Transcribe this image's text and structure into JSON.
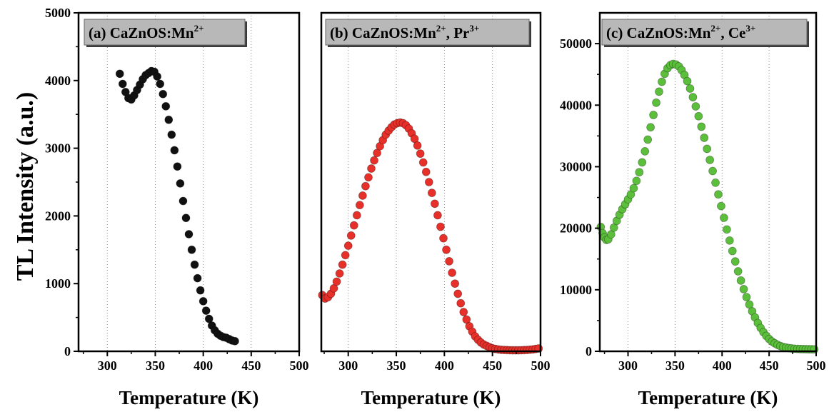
{
  "figure": {
    "ylabel": "TL Intensity (a.u.)",
    "xlabel": "Temperature (K)"
  },
  "chart_data": [
    {
      "type": "scatter",
      "panel_label": {
        "text": "(a) CaZnOS:Mn",
        "sup": "2+"
      },
      "xlabel": "Temperature (K)",
      "ylabel": "TL Intensity (a.u.)",
      "xlim": [
        270,
        500
      ],
      "ylim": [
        0,
        5000
      ],
      "xticks": [
        300,
        350,
        400,
        450,
        500
      ],
      "yticks": [
        0,
        1000,
        2000,
        3000,
        4000,
        5000
      ],
      "grid": "vertical dotted",
      "marker_color": "#111111",
      "series": [
        {
          "x": [
            313,
            316,
            319,
            322,
            325,
            328,
            331,
            334,
            337,
            340,
            343,
            346,
            349,
            352,
            355,
            358,
            361,
            364,
            367,
            370,
            373,
            376,
            379,
            382,
            385,
            388,
            391,
            394,
            397,
            400,
            403,
            406,
            409,
            412,
            415,
            418,
            421,
            424,
            427,
            430,
            433
          ],
          "y": [
            4100,
            3950,
            3830,
            3740,
            3720,
            3780,
            3860,
            3940,
            4020,
            4080,
            4110,
            4140,
            4130,
            4060,
            3950,
            3800,
            3620,
            3420,
            3200,
            2970,
            2730,
            2480,
            2220,
            1970,
            1730,
            1500,
            1280,
            1080,
            900,
            740,
            600,
            480,
            380,
            310,
            260,
            230,
            210,
            200,
            180,
            160,
            150
          ]
        }
      ]
    },
    {
      "type": "scatter",
      "panel_label": {
        "text": "(b) CaZnOS:Mn",
        "sup": "2+",
        "text2": ", Pr",
        "sup2": "3+"
      },
      "xlabel": "Temperature (K)",
      "xlim": [
        272,
        500
      ],
      "ylim": [
        0,
        5000
      ],
      "xticks": [
        300,
        350,
        400,
        450,
        500
      ],
      "grid": "vertical dotted",
      "marker_color": "#e8302a",
      "series": [
        {
          "x": [
            273,
            276,
            279,
            282,
            285,
            288,
            291,
            294,
            297,
            300,
            303,
            306,
            309,
            312,
            315,
            318,
            321,
            324,
            327,
            330,
            333,
            336,
            339,
            342,
            345,
            348,
            351,
            354,
            357,
            360,
            363,
            366,
            369,
            372,
            375,
            378,
            381,
            384,
            387,
            390,
            393,
            396,
            399,
            402,
            405,
            408,
            411,
            414,
            417,
            420,
            423,
            426,
            429,
            432,
            435,
            438,
            441,
            444,
            447,
            450,
            453,
            456,
            459,
            462,
            465,
            468,
            471,
            474,
            477,
            480,
            483,
            486,
            489,
            492,
            495,
            498
          ],
          "y": [
            830,
            780,
            800,
            850,
            930,
            1030,
            1150,
            1280,
            1420,
            1560,
            1710,
            1860,
            2010,
            2160,
            2300,
            2440,
            2570,
            2700,
            2820,
            2930,
            3030,
            3120,
            3200,
            3260,
            3310,
            3350,
            3370,
            3380,
            3370,
            3340,
            3290,
            3220,
            3140,
            3040,
            2920,
            2790,
            2650,
            2500,
            2340,
            2180,
            2010,
            1840,
            1670,
            1500,
            1330,
            1160,
            1000,
            850,
            710,
            580,
            470,
            370,
            290,
            220,
            170,
            130,
            100,
            80,
            60,
            45,
            35,
            28,
            22,
            20,
            18,
            16,
            15,
            15,
            15,
            16,
            18,
            20,
            24,
            28,
            35,
            42
          ]
        }
      ]
    },
    {
      "type": "scatter",
      "panel_label": {
        "text": "(c) CaZnOS:Mn",
        "sup": "2+",
        "text2": ", Ce",
        "sup2": "3+"
      },
      "xlabel": "Temperature (K)",
      "xlim": [
        270,
        500
      ],
      "ylim": [
        0,
        55000
      ],
      "xticks": [
        300,
        350,
        400,
        450,
        500
      ],
      "yticks": [
        0,
        10000,
        20000,
        30000,
        40000,
        50000
      ],
      "grid": "vertical dotted",
      "marker_color": "#5cbf3c",
      "series": [
        {
          "x": [
            271,
            273,
            275,
            277,
            279,
            282,
            285,
            288,
            291,
            294,
            297,
            300,
            303,
            306,
            309,
            312,
            315,
            318,
            321,
            324,
            327,
            330,
            333,
            336,
            339,
            342,
            345,
            348,
            351,
            354,
            357,
            360,
            363,
            366,
            369,
            372,
            375,
            378,
            381,
            384,
            387,
            390,
            393,
            396,
            399,
            402,
            405,
            408,
            411,
            414,
            417,
            420,
            423,
            426,
            429,
            432,
            435,
            438,
            441,
            444,
            447,
            450,
            453,
            456,
            459,
            462,
            465,
            468,
            471,
            474,
            477,
            480,
            483,
            486,
            489,
            492,
            495,
            498
          ],
          "y": [
            20200,
            19200,
            18500,
            18100,
            18200,
            19000,
            20100,
            21200,
            22200,
            23100,
            23900,
            24700,
            25500,
            26500,
            27700,
            29100,
            30700,
            32500,
            34400,
            36400,
            38400,
            40400,
            42200,
            43800,
            45100,
            46000,
            46500,
            46700,
            46600,
            46300,
            45700,
            44900,
            43900,
            42700,
            41300,
            39800,
            38200,
            36500,
            34700,
            32900,
            31100,
            29300,
            27400,
            25500,
            23600,
            21700,
            19800,
            18000,
            16300,
            14600,
            13000,
            11500,
            10100,
            8800,
            7600,
            6500,
            5500,
            4600,
            3800,
            3100,
            2500,
            2000,
            1600,
            1300,
            1050,
            850,
            700,
            600,
            520,
            460,
            420,
            390,
            370,
            360,
            350,
            340,
            330,
            320
          ]
        }
      ]
    }
  ]
}
